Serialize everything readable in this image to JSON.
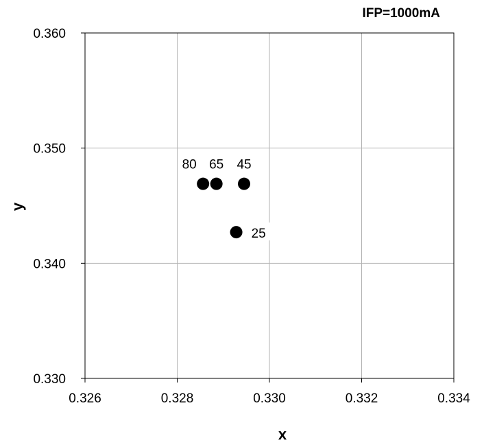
{
  "chart_data": {
    "type": "scatter",
    "title": "IFP=1000mA",
    "xlabel": "x",
    "ylabel": "y",
    "xlim": [
      0.326,
      0.334
    ],
    "ylim": [
      0.33,
      0.36
    ],
    "xticks": [
      "0.326",
      "0.328",
      "0.330",
      "0.332",
      "0.334"
    ],
    "yticks": [
      "0.330",
      "0.340",
      "0.350",
      "0.360"
    ],
    "grid": true,
    "legend": "none",
    "points": [
      {
        "x": 0.32856,
        "y": 0.3469,
        "label": "80"
      },
      {
        "x": 0.32885,
        "y": 0.3469,
        "label": "65"
      },
      {
        "x": 0.32945,
        "y": 0.3469,
        "label": "45"
      },
      {
        "x": 0.32928,
        "y": 0.3427,
        "label": "25"
      }
    ],
    "colors": {
      "marker": "#000000",
      "grid": "#b3b3b3",
      "axis": "#000000"
    }
  }
}
